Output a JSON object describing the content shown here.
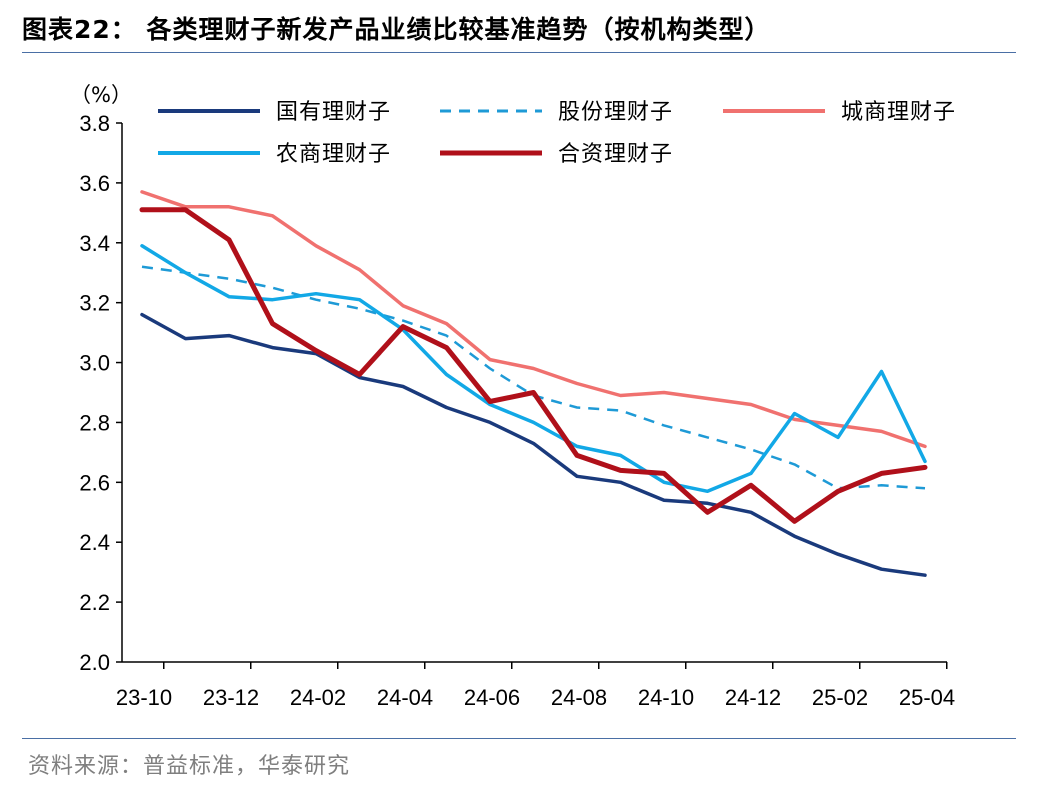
{
  "header": {
    "title": "图表22：   各类理财子新发产品业绩比较基准趋势（按机构类型）"
  },
  "footer": {
    "source": "资料来源：普益标准，华泰研究"
  },
  "chart_data": {
    "type": "line",
    "unit_label": "（%）",
    "ylim": [
      2.0,
      3.8
    ],
    "yticks": [
      "2.0",
      "2.2",
      "2.4",
      "2.6",
      "2.8",
      "3.0",
      "3.2",
      "3.4",
      "3.6",
      "3.8"
    ],
    "x": [
      "23-10",
      "23-11",
      "23-12",
      "24-01",
      "24-02",
      "24-03",
      "24-04",
      "24-05",
      "24-06",
      "24-07",
      "24-08",
      "24-09",
      "24-10",
      "24-11",
      "24-12",
      "25-01",
      "25-02",
      "25-03",
      "25-04"
    ],
    "xtick_labels": [
      "23-10",
      "23-12",
      "24-02",
      "24-04",
      "24-06",
      "24-08",
      "24-10",
      "24-12",
      "25-02",
      "25-04"
    ],
    "grid": false,
    "legend_position": "top",
    "series": [
      {
        "name": "国有理财子",
        "color": "#1a3a7c",
        "dash": "solid",
        "values": [
          3.16,
          3.08,
          3.09,
          3.05,
          3.03,
          2.95,
          2.92,
          2.85,
          2.8,
          2.73,
          2.62,
          2.6,
          2.54,
          2.53,
          2.5,
          2.42,
          2.36,
          2.31,
          2.29
        ]
      },
      {
        "name": "股份理财子",
        "color": "#1e9ad6",
        "dash": "dashed",
        "values": [
          3.32,
          3.3,
          3.28,
          3.25,
          3.21,
          3.18,
          3.14,
          3.09,
          2.98,
          2.89,
          2.85,
          2.84,
          2.79,
          2.75,
          2.71,
          2.66,
          2.58,
          2.59,
          2.58
        ]
      },
      {
        "name": "城商理财子",
        "color": "#f0716f",
        "dash": "solid",
        "values": [
          3.57,
          3.52,
          3.52,
          3.49,
          3.39,
          3.31,
          3.19,
          3.13,
          3.01,
          2.98,
          2.93,
          2.89,
          2.9,
          2.88,
          2.86,
          2.81,
          2.79,
          2.77,
          2.72
        ]
      },
      {
        "name": "农商理财子",
        "color": "#12a8e6",
        "dash": "solid",
        "values": [
          3.39,
          3.3,
          3.22,
          3.21,
          3.23,
          3.21,
          3.11,
          2.96,
          2.86,
          2.8,
          2.72,
          2.69,
          2.6,
          2.57,
          2.63,
          2.83,
          2.75,
          2.97,
          2.67
        ]
      },
      {
        "name": "合资理财子",
        "color": "#b0101a",
        "dash": "solid",
        "values": [
          3.51,
          3.51,
          3.41,
          3.13,
          3.04,
          2.96,
          3.12,
          3.05,
          2.87,
          2.9,
          2.69,
          2.64,
          2.63,
          2.5,
          2.59,
          2.47,
          2.57,
          2.63,
          2.65
        ]
      }
    ]
  }
}
